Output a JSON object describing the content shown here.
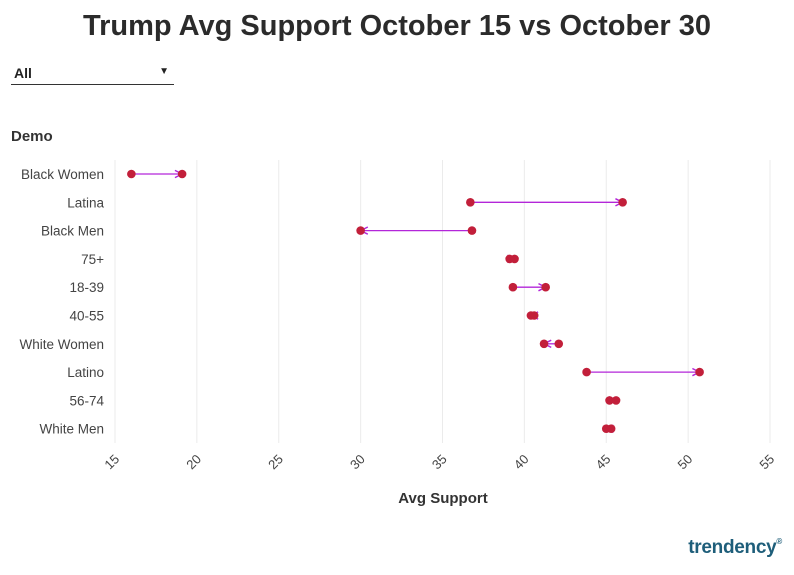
{
  "title": "Trump Avg Support October 15 vs October 30",
  "filter": {
    "selected": "All"
  },
  "logo_text": "trendency",
  "colors": {
    "dot": "#c21f3a",
    "arrow": "#b326d9",
    "grid": "#ebebeb",
    "text": "#444444"
  },
  "chart_data": {
    "type": "dumbbell",
    "ylabel": "Demo",
    "xlabel": "Avg Support",
    "xlim": [
      15,
      55
    ],
    "xticks": [
      15,
      20,
      25,
      30,
      35,
      40,
      45,
      50,
      55
    ],
    "grid": true,
    "series": [
      {
        "name": "October 15"
      },
      {
        "name": "October 30"
      }
    ],
    "categories": [
      "Black Women",
      "Latina",
      "Black Men",
      "75+",
      "18-39",
      "40-55",
      "White Women",
      "Latino",
      "56-74",
      "White Men"
    ],
    "start": [
      16.0,
      36.7,
      36.8,
      39.1,
      39.3,
      40.6,
      42.1,
      43.8,
      45.2,
      45.3
    ],
    "end": [
      19.1,
      46.0,
      30.0,
      39.4,
      41.3,
      40.4,
      41.2,
      50.7,
      45.6,
      45.0
    ]
  }
}
